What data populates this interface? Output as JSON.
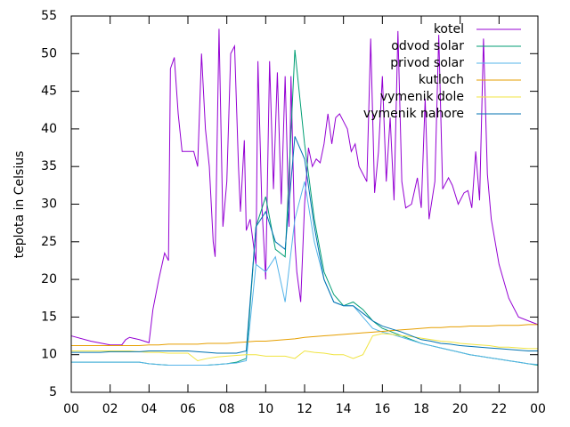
{
  "chart_data": {
    "type": "line",
    "ylabel": "teplota in Celsius",
    "xlim": [
      0,
      24
    ],
    "ylim": [
      5,
      55
    ],
    "xticks": [
      {
        "value": 0,
        "label": "00"
      },
      {
        "value": 2,
        "label": "02"
      },
      {
        "value": 4,
        "label": "04"
      },
      {
        "value": 6,
        "label": "06"
      },
      {
        "value": 8,
        "label": "08"
      },
      10,
      12,
      14,
      16,
      18,
      20,
      22,
      {
        "value": 24,
        "label": "00"
      }
    ],
    "yticks": [
      5,
      10,
      15,
      20,
      25,
      30,
      35,
      40,
      45,
      50,
      55
    ],
    "legend": "top right",
    "grid": false,
    "x": [
      0,
      0.5,
      1,
      1.5,
      2,
      2.5,
      3,
      3.5,
      4,
      4.5,
      5,
      5.5,
      6,
      6.5,
      7,
      7.5,
      8,
      8.5,
      9,
      9.5,
      10,
      10.5,
      11,
      11.5,
      12,
      12.5,
      13,
      13.5,
      14,
      14.5,
      15,
      15.5,
      16,
      16.5,
      17,
      17.5,
      18,
      18.5,
      19,
      19.5,
      20,
      20.5,
      21,
      21.5,
      22,
      22.5,
      23,
      23.5,
      24
    ],
    "series": [
      {
        "name": "kotel",
        "color": "#9400d3",
        "x": [
          0,
          1,
          2,
          2.6,
          2.8,
          3,
          3.5,
          4,
          4.2,
          4.5,
          4.8,
          5,
          5.1,
          5.3,
          5.5,
          5.7,
          6,
          6.3,
          6.5,
          6.7,
          6.9,
          7.1,
          7.3,
          7.4,
          7.6,
          7.8,
          8,
          8.2,
          8.4,
          8.6,
          8.7,
          8.9,
          9,
          9.2,
          9.5,
          9.6,
          9.8,
          10,
          10.2,
          10.4,
          10.6,
          10.8,
          11,
          11.2,
          11.3,
          11.5,
          11.6,
          11.8,
          12,
          12.2,
          12.4,
          12.6,
          12.8,
          13,
          13.2,
          13.4,
          13.6,
          13.8,
          14,
          14.2,
          14.4,
          14.6,
          14.8,
          15,
          15.2,
          15.4,
          15.6,
          15.8,
          16,
          16.2,
          16.4,
          16.6,
          16.8,
          17,
          17.2,
          17.5,
          17.8,
          18,
          18.2,
          18.4,
          18.7,
          18.9,
          19.1,
          19.4,
          19.6,
          19.9,
          20.2,
          20.4,
          20.6,
          20.8,
          21,
          21.2,
          21.4,
          21.6,
          22,
          22.5,
          23,
          23.5,
          24
        ],
        "values": [
          12.5,
          11.8,
          11.3,
          11.3,
          12,
          12.3,
          12,
          11.6,
          16,
          20,
          23.5,
          22.5,
          48,
          49.5,
          42,
          37,
          37,
          37,
          35,
          50,
          40,
          35,
          25,
          23,
          53.3,
          27,
          33,
          50,
          51,
          35,
          29,
          38.5,
          26.5,
          28,
          22,
          49,
          30,
          20,
          49,
          32,
          47.5,
          30,
          47,
          27,
          47,
          25,
          21,
          17,
          30,
          37.5,
          35,
          36,
          35.5,
          38,
          42,
          38,
          41.5,
          42,
          41,
          40,
          37,
          38,
          35,
          34,
          33,
          52,
          31.5,
          37,
          47,
          33,
          41.5,
          30.5,
          53,
          33,
          29.5,
          30,
          33.5,
          29.5,
          44,
          28,
          33,
          52.5,
          32,
          33.5,
          32.5,
          30,
          31.5,
          31.8,
          29.5,
          37,
          30.5,
          52,
          34,
          28,
          22,
          17.5,
          15,
          14.5,
          14
        ]
      },
      {
        "name": "odvod solar",
        "color": "#009e73",
        "values": [
          9,
          9,
          9,
          9,
          9,
          9,
          9,
          9,
          8.8,
          8.7,
          8.6,
          8.6,
          8.6,
          8.6,
          8.6,
          8.7,
          8.8,
          9.0,
          9.5,
          27,
          31,
          24,
          23,
          50.5,
          38,
          28,
          21,
          18,
          16.5,
          17,
          16,
          14.5,
          13.5,
          13,
          12.5,
          12,
          11.5,
          11.2,
          10.9,
          10.6,
          10.3,
          10,
          9.8,
          9.6,
          9.4,
          9.2,
          9,
          8.8,
          8.6
        ]
      },
      {
        "name": "privod solar",
        "color": "#56b4e9",
        "values": [
          9,
          9,
          9,
          9,
          9,
          9,
          9,
          9,
          8.8,
          8.7,
          8.6,
          8.6,
          8.6,
          8.6,
          8.6,
          8.7,
          8.8,
          8.9,
          9.2,
          22,
          21,
          23,
          17,
          28,
          33,
          25,
          20,
          17,
          16.5,
          16.5,
          15,
          13.5,
          13,
          12.7,
          12.3,
          11.9,
          11.5,
          11.2,
          10.9,
          10.6,
          10.3,
          10,
          9.8,
          9.6,
          9.4,
          9.2,
          9,
          8.8,
          8.7
        ]
      },
      {
        "name": "kutloch",
        "color": "#e69f00",
        "values": [
          11.2,
          11.2,
          11.2,
          11.2,
          11.2,
          11.2,
          11.2,
          11.2,
          11.3,
          11.3,
          11.4,
          11.4,
          11.4,
          11.4,
          11.5,
          11.5,
          11.5,
          11.6,
          11.7,
          11.8,
          11.8,
          11.9,
          12,
          12.1,
          12.3,
          12.4,
          12.5,
          12.6,
          12.7,
          12.8,
          12.9,
          13,
          13.1,
          13.2,
          13.3,
          13.4,
          13.5,
          13.6,
          13.6,
          13.7,
          13.7,
          13.8,
          13.8,
          13.8,
          13.9,
          13.9,
          13.9,
          14,
          14
        ]
      },
      {
        "name": "vymenik dole",
        "color": "#f0e442",
        "values": [
          10.5,
          10.5,
          10.5,
          10.5,
          10.5,
          10.5,
          10.5,
          10.4,
          10.3,
          10.3,
          10.2,
          10.2,
          10.2,
          9.2,
          9.5,
          9.7,
          9.8,
          9.9,
          10,
          10,
          9.8,
          9.8,
          9.8,
          9.5,
          10.5,
          10.3,
          10.2,
          10,
          10,
          9.5,
          10,
          12.5,
          12.8,
          12.7,
          12.5,
          12.4,
          12.2,
          12,
          11.8,
          11.7,
          11.5,
          11.4,
          11.3,
          11.2,
          11,
          11,
          10.9,
          10.8,
          10.8
        ]
      },
      {
        "name": "vymenik nahore",
        "color": "#0072b2",
        "values": [
          10.3,
          10.3,
          10.3,
          10.3,
          10.4,
          10.4,
          10.4,
          10.4,
          10.5,
          10.5,
          10.5,
          10.5,
          10.5,
          10.4,
          10.3,
          10.2,
          10.2,
          10.2,
          10.5,
          27,
          29,
          25,
          24,
          39,
          36,
          27,
          20,
          17,
          16.5,
          16.5,
          15.5,
          14.5,
          13.8,
          13.4,
          13,
          12.5,
          12,
          11.8,
          11.5,
          11.4,
          11.2,
          11.1,
          11,
          10.9,
          10.8,
          10.7,
          10.6,
          10.5,
          10.5
        ]
      }
    ]
  }
}
